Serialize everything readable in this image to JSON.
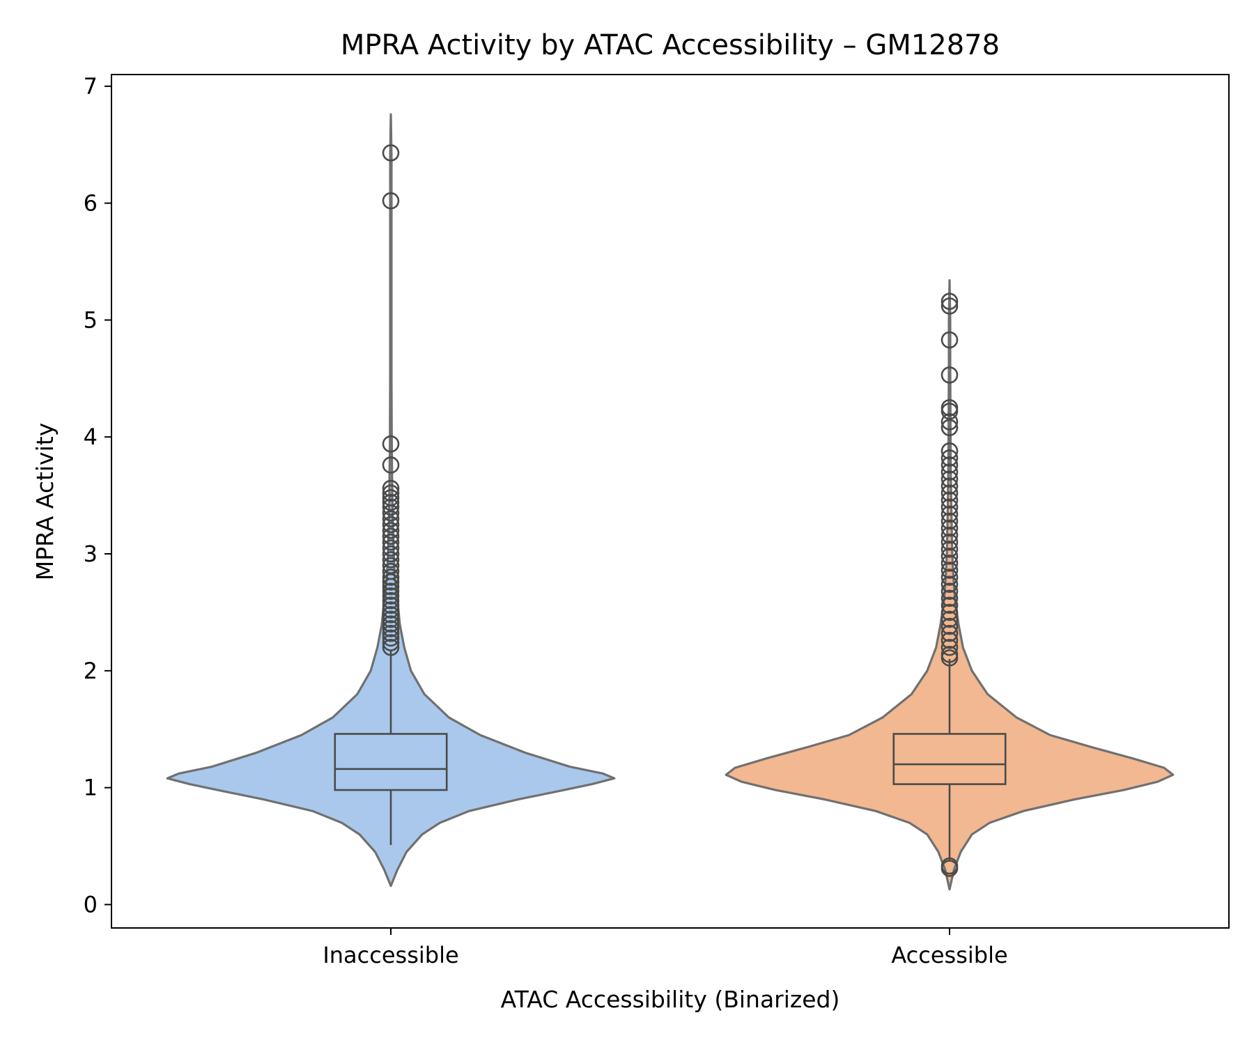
{
  "chart_data": {
    "type": "violin",
    "title": "MPRA Activity by ATAC Accessibility – GM12878",
    "xlabel": "ATAC Accessibility (Binarized)",
    "ylabel": "MPRA Activity",
    "ylim": [
      -0.2,
      7.1
    ],
    "yticks": [
      0,
      1,
      2,
      3,
      4,
      5,
      6,
      7
    ],
    "grid": false,
    "categories": [
      "Inaccessible",
      "Accessible"
    ],
    "series": [
      {
        "category": "Inaccessible",
        "color": "#a9c8ec",
        "box": {
          "whisker_low": 0.51,
          "q1": 0.98,
          "median": 1.16,
          "q3": 1.46,
          "whisker_high": 2.18
        },
        "violin_min": 0.16,
        "violin_max": 6.76,
        "density": [
          [
            0.16,
            0.0
          ],
          [
            0.3,
            0.03
          ],
          [
            0.45,
            0.07
          ],
          [
            0.6,
            0.14
          ],
          [
            0.7,
            0.22
          ],
          [
            0.8,
            0.35
          ],
          [
            0.9,
            0.57
          ],
          [
            0.97,
            0.75
          ],
          [
            1.03,
            0.9
          ],
          [
            1.08,
            1.0
          ],
          [
            1.12,
            0.95
          ],
          [
            1.18,
            0.8
          ],
          [
            1.3,
            0.6
          ],
          [
            1.45,
            0.4
          ],
          [
            1.6,
            0.26
          ],
          [
            1.8,
            0.15
          ],
          [
            2.0,
            0.09
          ],
          [
            2.2,
            0.06
          ],
          [
            2.4,
            0.04
          ],
          [
            2.6,
            0.03
          ],
          [
            2.8,
            0.018
          ],
          [
            3.0,
            0.013
          ],
          [
            3.3,
            0.008
          ],
          [
            3.6,
            0.006
          ],
          [
            4.0,
            0.004
          ],
          [
            4.5,
            0.003
          ],
          [
            5.0,
            0.003
          ],
          [
            5.5,
            0.003
          ],
          [
            6.0,
            0.003
          ],
          [
            6.4,
            0.003
          ],
          [
            6.76,
            0.0
          ]
        ],
        "outliers": [
          6.43,
          6.02,
          3.94,
          3.76,
          3.56,
          3.52,
          3.48,
          3.44,
          3.4,
          3.35,
          3.3,
          3.25,
          3.2,
          3.15,
          3.1,
          3.05,
          3.0,
          2.95,
          2.9,
          2.85,
          2.8,
          2.76,
          2.72,
          2.68,
          2.64,
          2.6,
          2.56,
          2.52,
          2.48,
          2.44,
          2.4,
          2.36,
          2.32,
          2.28,
          2.24,
          2.2
        ]
      },
      {
        "category": "Accessible",
        "color": "#f2b891",
        "box": {
          "whisker_low": 0.37,
          "q1": 1.03,
          "median": 1.2,
          "q3": 1.46,
          "whisker_high": 2.1
        },
        "violin_min": 0.13,
        "violin_max": 5.34,
        "density": [
          [
            0.13,
            0.0
          ],
          [
            0.3,
            0.02
          ],
          [
            0.45,
            0.05
          ],
          [
            0.6,
            0.1
          ],
          [
            0.7,
            0.18
          ],
          [
            0.8,
            0.33
          ],
          [
            0.9,
            0.56
          ],
          [
            0.98,
            0.78
          ],
          [
            1.05,
            0.93
          ],
          [
            1.11,
            1.0
          ],
          [
            1.17,
            0.96
          ],
          [
            1.25,
            0.82
          ],
          [
            1.35,
            0.63
          ],
          [
            1.45,
            0.45
          ],
          [
            1.6,
            0.3
          ],
          [
            1.8,
            0.17
          ],
          [
            2.0,
            0.1
          ],
          [
            2.2,
            0.06
          ],
          [
            2.4,
            0.04
          ],
          [
            2.6,
            0.025
          ],
          [
            2.8,
            0.017
          ],
          [
            3.0,
            0.012
          ],
          [
            3.4,
            0.008
          ],
          [
            3.8,
            0.005
          ],
          [
            4.2,
            0.004
          ],
          [
            4.6,
            0.003
          ],
          [
            5.0,
            0.003
          ],
          [
            5.34,
            0.0
          ]
        ],
        "outliers": [
          5.16,
          5.12,
          4.83,
          4.53,
          4.25,
          4.22,
          4.13,
          4.08,
          3.88,
          3.82,
          3.76,
          3.7,
          3.64,
          3.58,
          3.52,
          3.46,
          3.4,
          3.34,
          3.28,
          3.22,
          3.16,
          3.1,
          3.04,
          2.98,
          2.92,
          2.86,
          2.8,
          2.74,
          2.68,
          2.62,
          2.56,
          2.5,
          2.44,
          2.38,
          2.32,
          2.26,
          2.2,
          2.14,
          2.11,
          0.33,
          0.31
        ]
      }
    ],
    "outline_color": "#707070",
    "box_color": "#4a4a4a"
  }
}
